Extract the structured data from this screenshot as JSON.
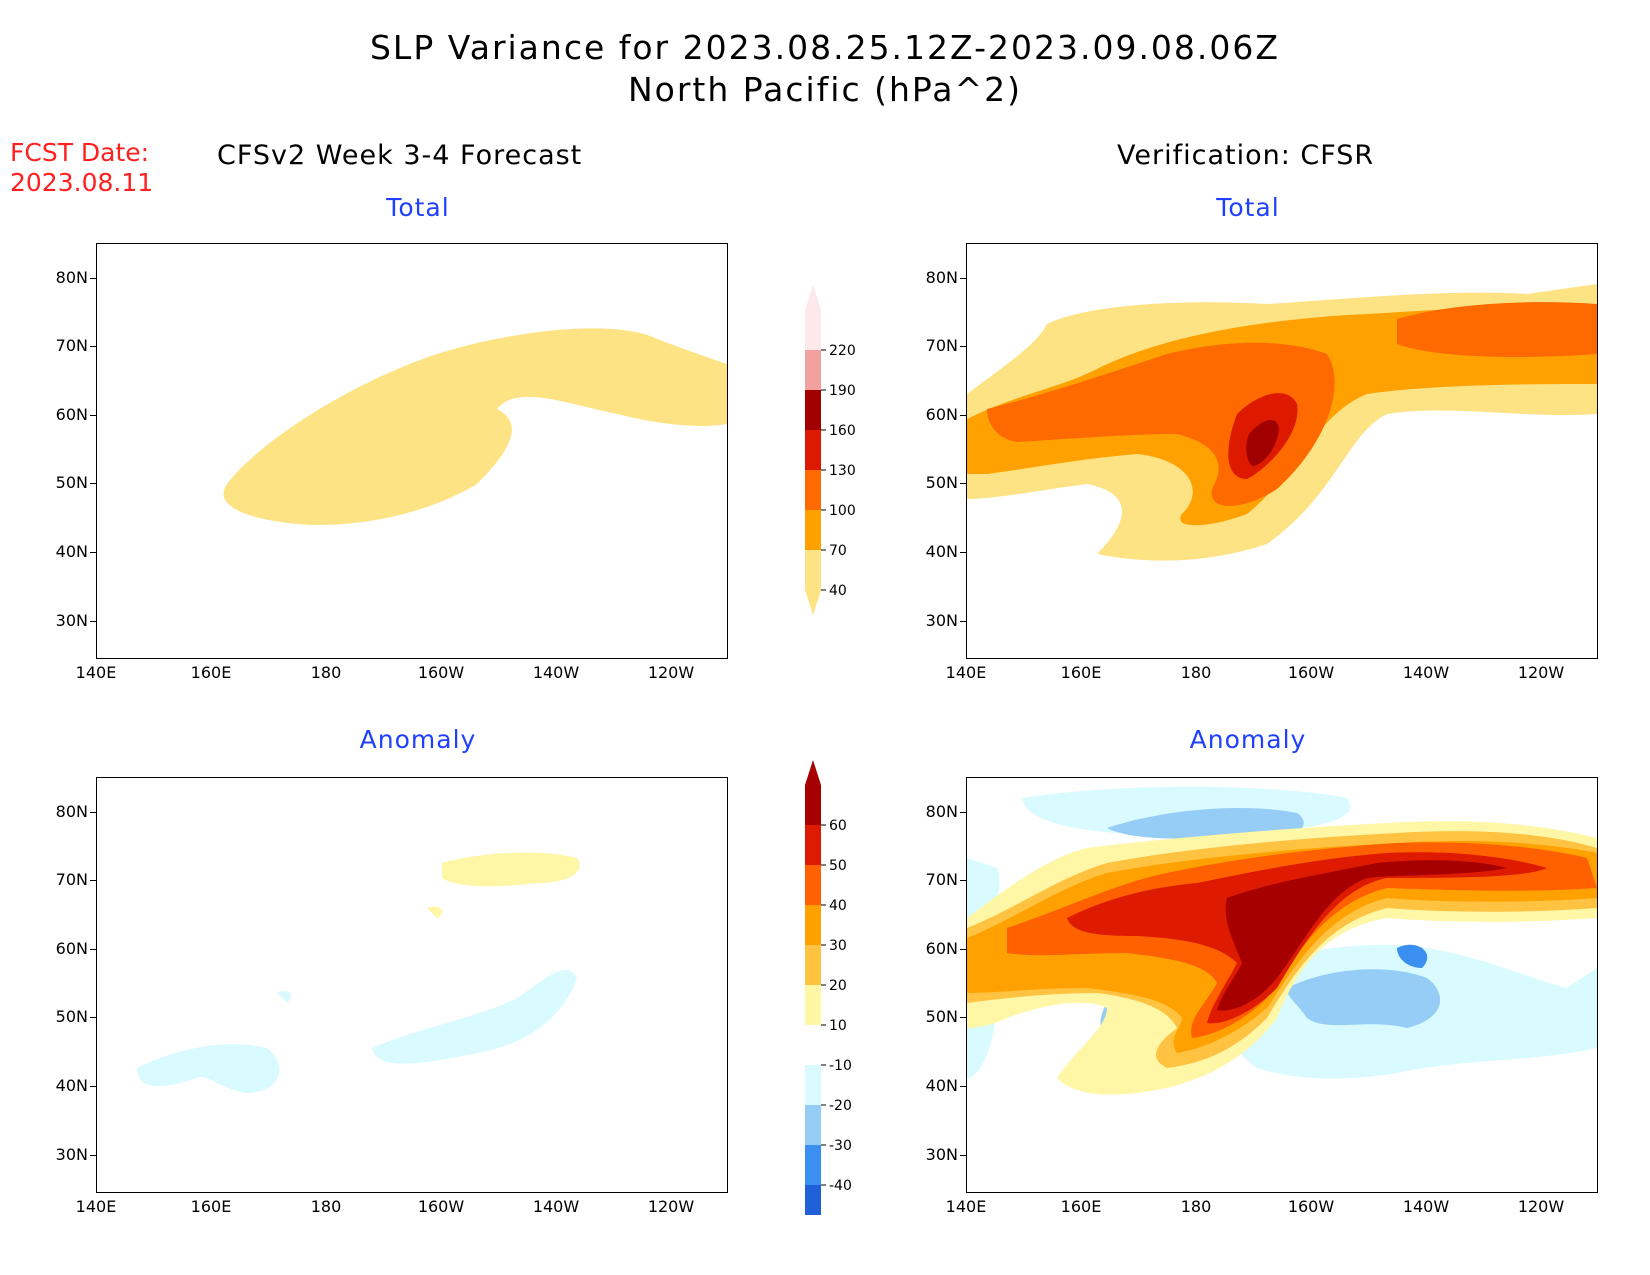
{
  "header": {
    "title_line1": "SLP Variance for 2023.08.25.12Z-2023.09.08.06Z",
    "title_line2": "North Pacific (hPa^2)",
    "fcst_label": "FCST Date:",
    "fcst_date": "2023.08.11",
    "left_column_title": "CFSv2 Week 3-4 Forecast",
    "right_column_title": "Verification: CFSR"
  },
  "panels": [
    {
      "id": "forecast-total",
      "subtitle": "Total"
    },
    {
      "id": "verification-total",
      "subtitle": "Total"
    },
    {
      "id": "forecast-anomaly",
      "subtitle": "Anomaly"
    },
    {
      "id": "verification-anomaly",
      "subtitle": "Anomaly"
    }
  ],
  "axes": {
    "lat_labels": [
      "80N",
      "70N",
      "60N",
      "50N",
      "40N",
      "30N"
    ],
    "lon_labels": [
      "140E",
      "160E",
      "180",
      "160W",
      "140W",
      "120W"
    ]
  },
  "colorbars": {
    "total": {
      "labels": [
        "220",
        "190",
        "160",
        "130",
        "100",
        "70",
        "40"
      ],
      "colors": [
        "#fde9e9",
        "#f2a0a0",
        "#a00000",
        "#dd1a00",
        "#ff6a00",
        "#ffa100",
        "#fde383"
      ]
    },
    "anomaly": {
      "labels": [
        "60",
        "50",
        "40",
        "30",
        "20",
        "10",
        "-10",
        "-20",
        "-30",
        "-40"
      ],
      "colors": [
        "#a60000",
        "#de1a00",
        "#ff6000",
        "#ffa100",
        "#ffc341",
        "#fff6a6",
        "#ffffff",
        "#d9fbff",
        "#95cdf7",
        "#3b8ff0",
        "#1f5fd8"
      ]
    }
  }
}
